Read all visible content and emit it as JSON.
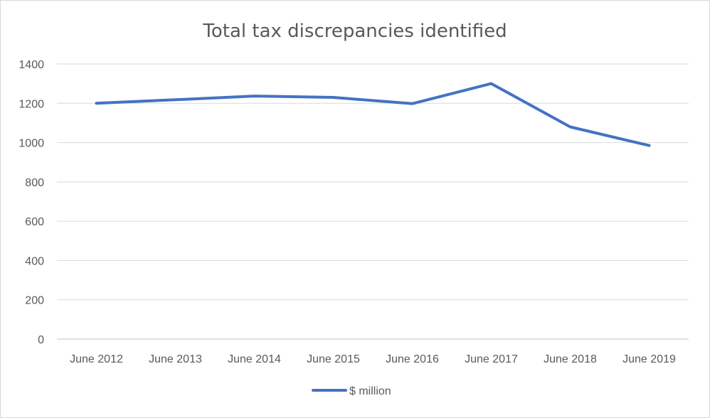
{
  "chart_data": {
    "type": "line",
    "title": "Total tax discrepancies identified",
    "categories": [
      "June 2012",
      "June 2013",
      "June 2014",
      "June 2015",
      "June 2016",
      "June 2017",
      "June 2018",
      "June 2019"
    ],
    "series": [
      {
        "name": "$ million",
        "values": [
          1200,
          1218,
          1237,
          1230,
          1198,
          1300,
          1080,
          985
        ],
        "color": "#4472c4"
      }
    ],
    "xlabel": "",
    "ylabel": "",
    "ylim": [
      0,
      1400
    ],
    "yticks": [
      0,
      200,
      400,
      600,
      800,
      1000,
      1200,
      1400
    ],
    "grid": true,
    "legend_position": "bottom"
  }
}
